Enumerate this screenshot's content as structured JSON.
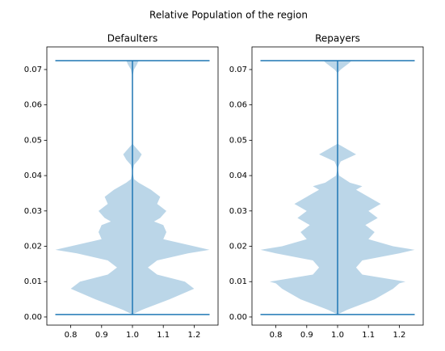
{
  "title": "Relative Population of the region",
  "chart_data": [
    {
      "type": "violin",
      "title": "Defaulters",
      "position": 1,
      "color": "#1f77b4",
      "min": 0.0007,
      "max": 0.0725,
      "y": [
        0.0007,
        0.002,
        0.005,
        0.008,
        0.01,
        0.012,
        0.014,
        0.016,
        0.018,
        0.019,
        0.02,
        0.022,
        0.024,
        0.026,
        0.027,
        0.028,
        0.03,
        0.032,
        0.034,
        0.036,
        0.038,
        0.039,
        0.041,
        0.043,
        0.0445,
        0.046,
        0.048,
        0.049,
        0.068,
        0.07,
        0.0715,
        0.0725
      ],
      "widths": [
        0,
        0.03,
        0.12,
        0.2,
        0.17,
        0.08,
        0.05,
        0.08,
        0.18,
        0.25,
        0.2,
        0.1,
        0.11,
        0.1,
        0.07,
        0.09,
        0.11,
        0.08,
        0.09,
        0.06,
        0.02,
        0.005,
        0,
        0.005,
        0.02,
        0.03,
        0.01,
        0,
        0,
        0.005,
        0.015,
        0.02
      ],
      "xlim": [
        0.7225,
        1.2775
      ],
      "ylim": [
        -0.0023,
        0.0764
      ],
      "xticks": [
        0.8,
        0.9,
        {
          "value": 1,
          "label": "1.0"
        },
        1.1,
        1.2
      ],
      "yticks": [
        {
          "value": 0,
          "label": "0.00"
        },
        0.01,
        0.02,
        0.03,
        0.04,
        0.05,
        0.06,
        0.07
      ]
    },
    {
      "type": "violin",
      "title": "Repayers",
      "position": 1,
      "color": "#1f77b4",
      "min": 0.0007,
      "max": 0.0725,
      "y": [
        0.0007,
        0.002,
        0.005,
        0.008,
        0.0095,
        0.01,
        0.012,
        0.014,
        0.016,
        0.018,
        0.019,
        0.02,
        0.022,
        0.024,
        0.026,
        0.028,
        0.03,
        0.032,
        0.034,
        0.036,
        0.037,
        0.038,
        0.04,
        0.042,
        0.044,
        0.046,
        0.047,
        0.049,
        0.069,
        0.07,
        0.072,
        0.0725
      ],
      "widths": [
        0,
        0.03,
        0.12,
        0.18,
        0.2,
        0.22,
        0.08,
        0.06,
        0.08,
        0.2,
        0.25,
        0.18,
        0.1,
        0.12,
        0.09,
        0.13,
        0.1,
        0.14,
        0.1,
        0.06,
        0.08,
        0.04,
        0.005,
        0,
        0.01,
        0.06,
        0.04,
        0,
        0,
        0.01,
        0.04,
        0.045
      ],
      "xlim": [
        0.7225,
        1.2775
      ],
      "ylim": [
        -0.0023,
        0.0764
      ],
      "xticks": [
        0.8,
        0.9,
        {
          "value": 1,
          "label": "1.0"
        },
        1.1,
        1.2
      ],
      "yticks": [
        {
          "value": 0,
          "label": "0.00"
        },
        0.01,
        0.02,
        0.03,
        0.04,
        0.05,
        0.06,
        0.07
      ]
    }
  ]
}
